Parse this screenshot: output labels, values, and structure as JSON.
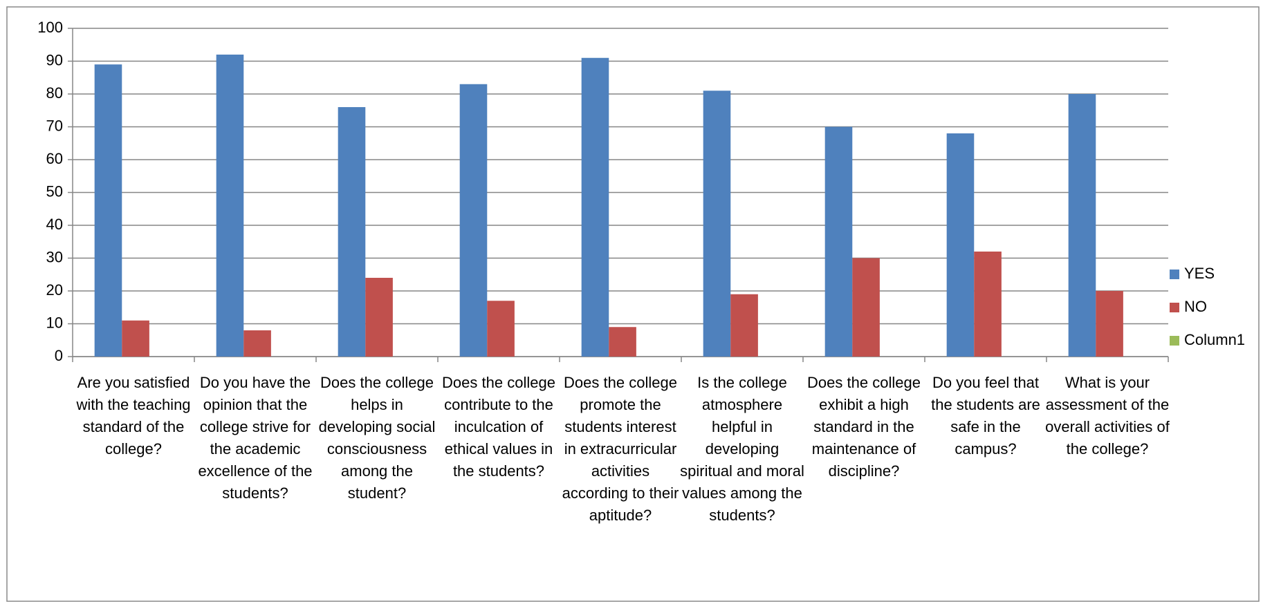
{
  "chart_data": {
    "type": "bar",
    "categories": [
      "Are you satisfied with the teaching standard of the college?",
      "Do you have the opinion that the college strive for the academic excellence of the students?",
      "Does the college helps in developing social consciousness among the student?",
      "Does the college contribute to the inculcation of ethical values in the students?",
      "Does the college promote the students interest in extracurricular activities according to their aptitude?",
      "Is the college atmosphere helpful in developing spiritual and moral values among the students?",
      "Does the college exhibit a high standard in the maintenance of discipline?",
      "Do you feel that the students are safe in the campus?",
      "What is your assessment of the overall activities of the college?"
    ],
    "series": [
      {
        "name": "YES",
        "color": "#4f81bd",
        "values": [
          89,
          92,
          76,
          83,
          91,
          81,
          70,
          68,
          80
        ]
      },
      {
        "name": "NO",
        "color": "#c0504d",
        "values": [
          11,
          8,
          24,
          17,
          9,
          19,
          30,
          32,
          20
        ]
      },
      {
        "name": "Column1",
        "color": "#9bbb59",
        "values": [
          null,
          null,
          null,
          null,
          null,
          null,
          null,
          null,
          null
        ]
      }
    ],
    "ylim": [
      0,
      100
    ],
    "yticks": [
      0,
      10,
      20,
      30,
      40,
      50,
      60,
      70,
      80,
      90,
      100
    ],
    "grid": true,
    "legend": "right"
  }
}
